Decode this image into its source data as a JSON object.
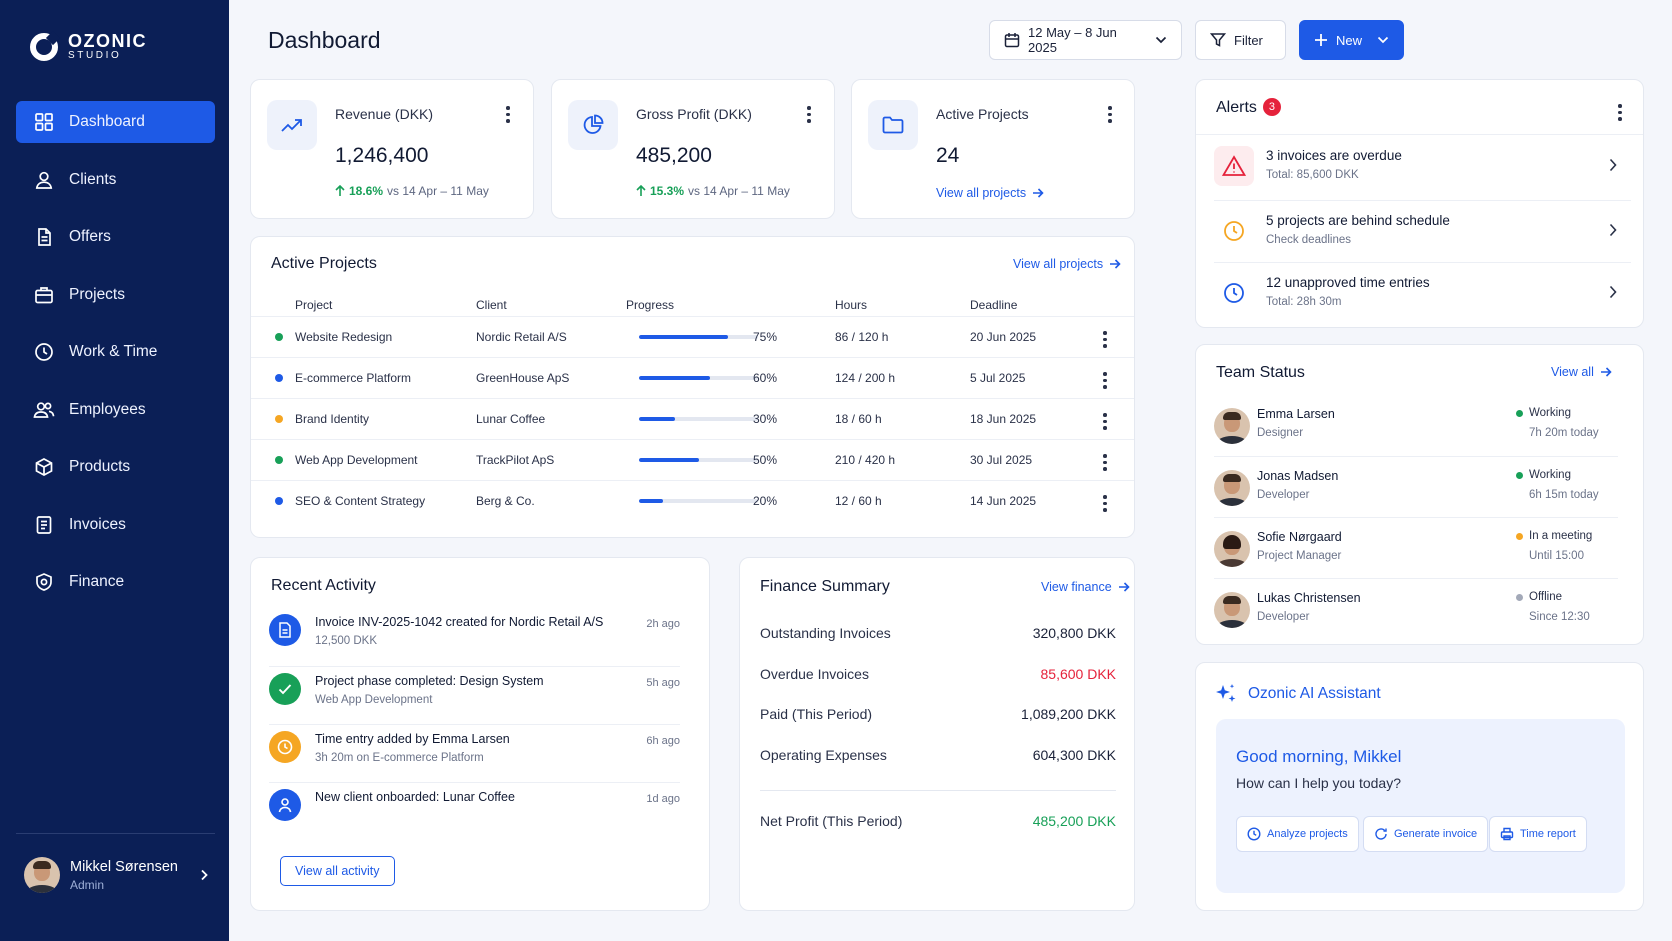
{
  "brand": {
    "name": "OZONIC",
    "sub": "STUDIO"
  },
  "nav": [
    {
      "label": "Dashboard",
      "icon": "grid-icon",
      "active": true
    },
    {
      "label": "Clients",
      "icon": "user-icon"
    },
    {
      "label": "Offers",
      "icon": "document-icon"
    },
    {
      "label": "Projects",
      "icon": "briefcase-icon"
    },
    {
      "label": "Work & Time",
      "icon": "clock-icon"
    },
    {
      "label": "Employees",
      "icon": "users-icon"
    },
    {
      "label": "Products",
      "icon": "box-icon"
    },
    {
      "label": "Invoices",
      "icon": "invoice-icon"
    },
    {
      "label": "Finance",
      "icon": "shield-icon"
    }
  ],
  "user": {
    "name": "Mikkel Sørensen",
    "role": "Admin"
  },
  "header": {
    "title": "Dashboard",
    "date_range": "12 May – 8 Jun 2025",
    "filter": "Filter",
    "new": "New"
  },
  "kpis": [
    {
      "label": "Revenue (DKK)",
      "value": "1,246,400",
      "delta": "18.6%",
      "compare": "vs 14 Apr – 11 May",
      "icon": "trend-up-icon"
    },
    {
      "label": "Gross Profit (DKK)",
      "value": "485,200",
      "delta": "15.3%",
      "compare": "vs 14 Apr – 11 May",
      "icon": "pie-chart-icon"
    },
    {
      "label": "Active Projects",
      "value": "24",
      "link": "View all projects",
      "icon": "folder-icon"
    }
  ],
  "projects": {
    "title": "Active Projects",
    "link": "View all projects",
    "headers": [
      "Project",
      "Client",
      "Progress",
      "Hours",
      "Deadline"
    ],
    "rows": [
      {
        "name": "Website Redesign",
        "client": "Nordic Retail A/S",
        "progress": 75,
        "progress_label": "75%",
        "hours": "86 / 120 h",
        "deadline": "20 Jun 2025",
        "dot": "#18a058"
      },
      {
        "name": "E-commerce Platform",
        "client": "GreenHouse ApS",
        "progress": 60,
        "progress_label": "60%",
        "hours": "124 / 200 h",
        "deadline": "5 Jul 2025",
        "dot": "#1e5ae6"
      },
      {
        "name": "Brand Identity",
        "client": "Lunar Coffee",
        "progress": 30,
        "progress_label": "30%",
        "hours": "18 / 60 h",
        "deadline": "18 Jun 2025",
        "dot": "#f5a623"
      },
      {
        "name": "Web App Development",
        "client": "TrackPilot ApS",
        "progress": 50,
        "progress_label": "50%",
        "hours": "210 / 420 h",
        "deadline": "30 Jul 2025",
        "dot": "#18a058"
      },
      {
        "name": "SEO & Content Strategy",
        "client": "Berg & Co.",
        "progress": 20,
        "progress_label": "20%",
        "hours": "12 / 60 h",
        "deadline": "14 Jun 2025",
        "dot": "#1e5ae6"
      }
    ]
  },
  "alerts": {
    "title": "Alerts",
    "count": "3",
    "items": [
      {
        "title": "3 invoices are overdue",
        "sub": "Total: 85,600 DKK",
        "icon": "warning-icon",
        "color": "#e5223b",
        "bg": "#fdecee"
      },
      {
        "title": "5 projects are behind schedule",
        "sub": "Check deadlines",
        "icon": "clock-icon",
        "color": "#f5a623",
        "bg": "#ffffff"
      },
      {
        "title": "12 unapproved time entries",
        "sub": "Total: 28h 30m",
        "icon": "clock-icon",
        "color": "#1e5ae6",
        "bg": "#ffffff"
      }
    ]
  },
  "team": {
    "title": "Team Status",
    "link": "View all",
    "members": [
      {
        "name": "Emma Larsen",
        "role": "Designer",
        "status": "Working",
        "detail": "7h 20m today",
        "color": "#18a058"
      },
      {
        "name": "Jonas Madsen",
        "role": "Developer",
        "status": "Working",
        "detail": "6h 15m today",
        "color": "#18a058"
      },
      {
        "name": "Sofie Nørgaard",
        "role": "Project Manager",
        "status": "In a meeting",
        "detail": "Until 15:00",
        "color": "#f5a623"
      },
      {
        "name": "Lukas Christensen",
        "role": "Developer",
        "status": "Offline",
        "detail": "Since 12:30",
        "color": "#a3a9b8"
      }
    ]
  },
  "activity": {
    "title": "Recent Activity",
    "button": "View all activity",
    "items": [
      {
        "title": "Invoice INV-2025-1042 created for Nordic Retail A/S",
        "sub": "12,500 DKK",
        "time": "2h ago",
        "icon": "document-icon",
        "color": "#1e5ae6"
      },
      {
        "title": "Project phase completed: Design System",
        "sub": "Web App Development",
        "time": "5h ago",
        "icon": "check-icon",
        "color": "#18a058"
      },
      {
        "title": "Time entry added by Emma Larsen",
        "sub": "3h 20m on E-commerce Platform",
        "time": "6h ago",
        "icon": "clock-icon",
        "color": "#f5a623"
      },
      {
        "title": "New client onboarded: Lunar Coffee",
        "sub": "",
        "time": "1d ago",
        "icon": "user-icon",
        "color": "#1e5ae6"
      }
    ]
  },
  "finance": {
    "title": "Finance Summary",
    "link": "View finance",
    "rows": [
      {
        "label": "Outstanding Invoices",
        "value": "320,800 DKK",
        "color": "#1a2138"
      },
      {
        "label": "Overdue Invoices",
        "value": "85,600 DKK",
        "color": "#e5223b"
      },
      {
        "label": "Paid (This Period)",
        "value": "1,089,200 DKK",
        "color": "#1a2138"
      },
      {
        "label": "Operating Expenses",
        "value": "604,300 DKK",
        "color": "#1a2138"
      }
    ],
    "net_label": "Net Profit (This Period)",
    "net_value": "485,200 DKK"
  },
  "ai": {
    "title": "Ozonic AI Assistant",
    "greeting": "Good morning, Mikkel",
    "prompt": "How can I help you today?",
    "chips": [
      {
        "label": "Analyze projects",
        "icon": "clock-icon"
      },
      {
        "label": "Generate invoice",
        "icon": "refresh-icon"
      },
      {
        "label": "Time report",
        "icon": "printer-icon"
      }
    ]
  }
}
